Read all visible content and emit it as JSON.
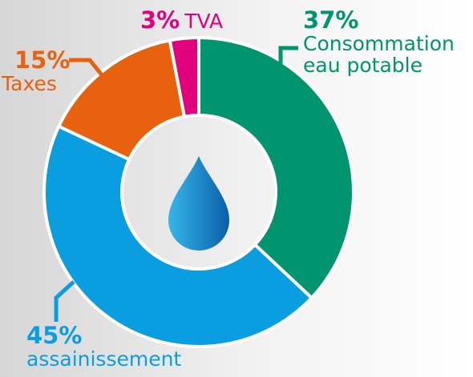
{
  "chart_data": {
    "type": "donut",
    "categories": [
      "Consommation eau potable",
      "assainissement",
      "Taxes",
      "TVA"
    ],
    "values": [
      37,
      45,
      15,
      3
    ],
    "value_labels": [
      "37%",
      "45%",
      "15%",
      "3%"
    ],
    "colors": [
      "#00956e",
      "#0a9ee0",
      "#e8610f",
      "#e3007d"
    ]
  }
}
